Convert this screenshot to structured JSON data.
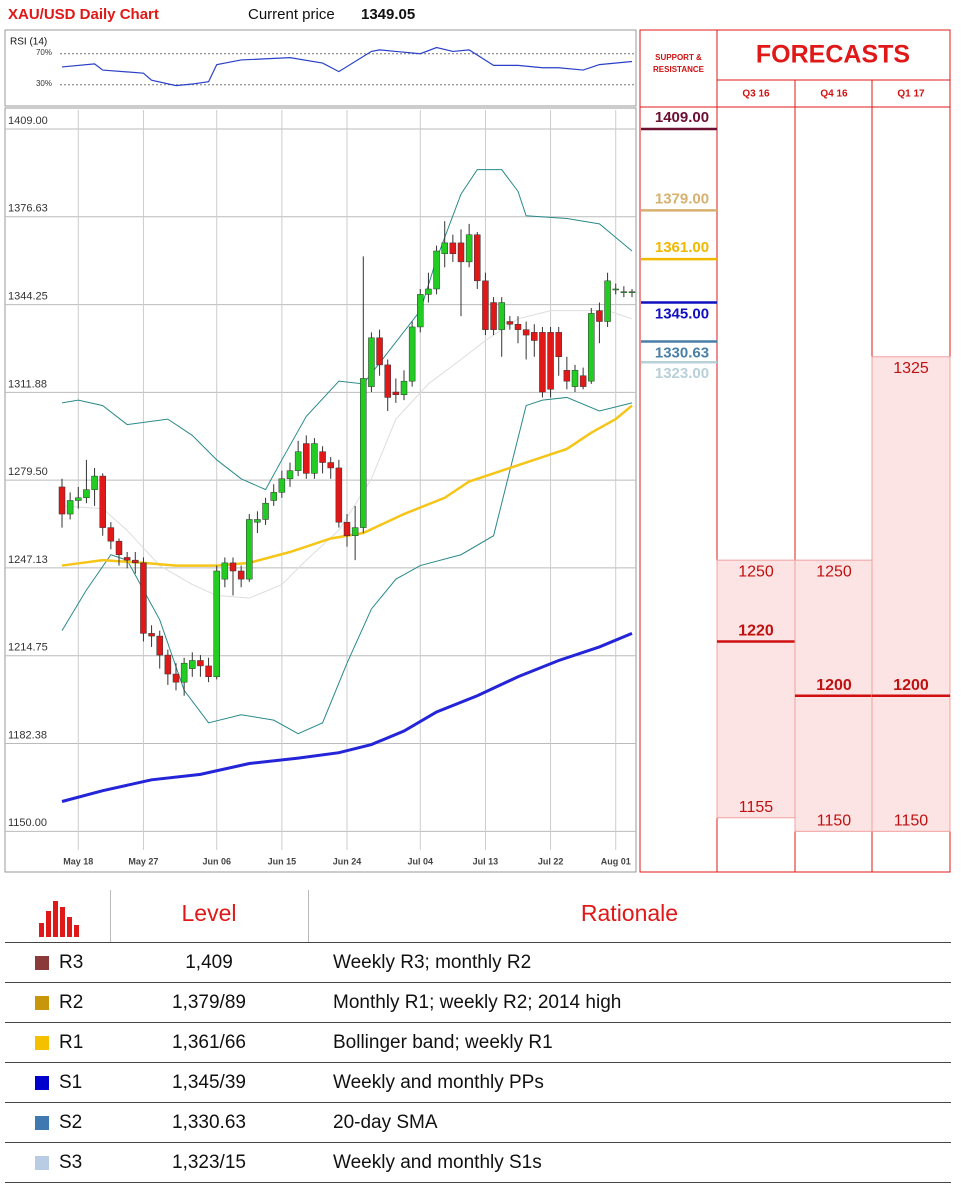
{
  "header": {
    "title": "XAU/USD Daily Chart",
    "price_label": "Current price",
    "price": "1349.05"
  },
  "chart_data": [
    {
      "type": "candlestick",
      "categories": [
        null,
        null,
        "May 18",
        null,
        null,
        null,
        null,
        null,
        null,
        null,
        "May 27",
        null,
        null,
        null,
        null,
        null,
        null,
        null,
        null,
        "Jun 06",
        null,
        null,
        null,
        null,
        null,
        null,
        null,
        "Jun 15",
        null,
        null,
        null,
        null,
        null,
        null,
        null,
        "Jun 24",
        null,
        null,
        null,
        null,
        null,
        null,
        null,
        null,
        "Jul 04",
        null,
        null,
        null,
        null,
        null,
        null,
        null,
        "Jul 13",
        null,
        null,
        null,
        null,
        null,
        null,
        null,
        "Jul 22",
        null,
        null,
        null,
        null,
        null,
        null,
        null,
        "Aug 01",
        null,
        null
      ],
      "open": [
        1277,
        1267,
        1272,
        1273,
        1276,
        1281,
        1262,
        1257,
        1251,
        1250,
        1249,
        1223,
        1222,
        1215,
        1208,
        1205,
        1210,
        1213,
        1211,
        1207,
        1243,
        1249,
        1246,
        1243,
        1264,
        1265,
        1272,
        1275,
        1280,
        1283,
        1293,
        1282,
        1290,
        1286,
        1284,
        1264,
        1259,
        1262,
        1314,
        1332,
        1322,
        1312,
        1311,
        1316,
        1336,
        1348,
        1350,
        1363,
        1367,
        1367,
        1360,
        1370,
        1353,
        1345,
        1335,
        1338,
        1337,
        1335,
        1334,
        1334,
        1334,
        1334,
        1320,
        1314,
        1318,
        1316,
        1342,
        1338,
        1350,
        1349,
        1349
      ],
      "close": [
        1267,
        1272,
        1273,
        1276,
        1281,
        1262,
        1257,
        1252,
        1250,
        1249,
        1223,
        1222,
        1215,
        1208,
        1205,
        1212,
        1213,
        1211,
        1207,
        1246,
        1249,
        1246,
        1243,
        1265,
        1265,
        1271,
        1275,
        1280,
        1283,
        1290,
        1282,
        1293,
        1286,
        1284,
        1264,
        1259,
        1262,
        1317,
        1332,
        1322,
        1310,
        1311,
        1316,
        1336,
        1348,
        1350,
        1364,
        1367,
        1363,
        1360,
        1370,
        1353,
        1335,
        1335,
        1345,
        1337,
        1335,
        1333,
        1331,
        1312,
        1313,
        1325,
        1316,
        1320,
        1314,
        1341,
        1338,
        1353,
        1350,
        1349,
        1349
      ],
      "high": [
        1280,
        1275,
        1277,
        1287,
        1284,
        1282,
        1264,
        1258,
        1253,
        1253,
        1251,
        1226,
        1224,
        1217,
        1212,
        1214,
        1216,
        1215,
        1214,
        1248,
        1251,
        1251,
        1248,
        1267,
        1268,
        1273,
        1278,
        1283,
        1286,
        1294,
        1296,
        1295,
        1292,
        1288,
        1287,
        1267,
        1270,
        1362,
        1334,
        1335,
        1324,
        1317,
        1320,
        1338,
        1350,
        1356,
        1366,
        1375,
        1370,
        1372,
        1374,
        1371,
        1356,
        1347,
        1347,
        1340,
        1340,
        1338,
        1337,
        1336,
        1336,
        1336,
        1325,
        1322,
        1321,
        1343,
        1345,
        1356,
        1352,
        1351,
        1350
      ],
      "low": [
        1262,
        1265,
        1269,
        1271,
        1270,
        1259,
        1254,
        1248,
        1247,
        1245,
        1220,
        1218,
        1210,
        1204,
        1202,
        1200,
        1207,
        1207,
        1205,
        1206,
        1240,
        1237,
        1240,
        1242,
        1260,
        1263,
        1270,
        1273,
        1277,
        1281,
        1280,
        1280,
        1282,
        1280,
        1262,
        1255,
        1250,
        1260,
        1312,
        1318,
        1305,
        1308,
        1309,
        1314,
        1334,
        1345,
        1348,
        1358,
        1360,
        1340,
        1358,
        1350,
        1333,
        1333,
        1325,
        1335,
        1330,
        1324,
        1325,
        1310,
        1310,
        1318,
        1313,
        1312,
        1313,
        1315,
        1330,
        1336,
        1348,
        1347,
        1347
      ],
      "up_color": "#22cc22",
      "down_color": "#e01818",
      "lines": [
        {
          "color": "#2a8a8a",
          "x": [
            0,
            2,
            5,
            8,
            13,
            16,
            19,
            22,
            25,
            27,
            30,
            34,
            37,
            44,
            46,
            49,
            51,
            54,
            56,
            57,
            62,
            66,
            70
          ],
          "values": [
            1308,
            1309,
            1307,
            1300,
            1302,
            1296,
            1287,
            1280,
            1276,
            1287,
            1303,
            1316,
            1315,
            1342,
            1361,
            1385,
            1394,
            1394,
            1386,
            1377,
            1376,
            1374,
            1364
          ]
        },
        {
          "color": "#2a8a8a",
          "x": [
            0,
            3,
            6,
            8,
            12,
            15,
            18,
            22,
            26,
            29,
            32,
            35,
            38,
            41,
            44,
            49,
            53,
            55,
            57,
            59,
            62,
            66,
            70
          ],
          "values": [
            1224,
            1239,
            1252,
            1250,
            1228,
            1202,
            1190,
            1193,
            1191,
            1186,
            1190,
            1212,
            1232,
            1243,
            1248,
            1252,
            1259,
            1283,
            1307,
            1309,
            1310,
            1305,
            1308
          ]
        },
        {
          "color": "#dddddd",
          "x": [
            0,
            5,
            8,
            12,
            16,
            19,
            23,
            27,
            30,
            34,
            38,
            41,
            45,
            49,
            52,
            56,
            60,
            63,
            67,
            70
          ],
          "values": [
            1270,
            1269,
            1261,
            1248,
            1241,
            1237,
            1236,
            1241,
            1250,
            1261,
            1280,
            1302,
            1315,
            1324,
            1331,
            1339,
            1342,
            1342,
            1342,
            1339
          ]
        },
        {
          "color": "#f5c518",
          "x": [
            0,
            5,
            10,
            14,
            19,
            23,
            28,
            33,
            37,
            42,
            47,
            50,
            54,
            58,
            62,
            65,
            68,
            70
          ],
          "values": [
            1248,
            1250,
            1249,
            1248,
            1248,
            1249,
            1253,
            1258,
            1260,
            1267,
            1273,
            1279,
            1283,
            1287,
            1291,
            1297,
            1302,
            1307
          ]
        },
        {
          "color": "#2424d8",
          "x": [
            0,
            5,
            11,
            17,
            23,
            29,
            34,
            38,
            42,
            46,
            51,
            56,
            61,
            66,
            70
          ],
          "values": [
            1161,
            1165,
            1169,
            1171,
            1175,
            1177,
            1179,
            1182,
            1187,
            1194,
            1200,
            1207,
            1213,
            1218,
            1223
          ]
        }
      ],
      "ylim": [
        1135,
        1416
      ],
      "yticks": [
        {
          "value": 1409,
          "label": "1409.00"
        },
        {
          "value": 1376.63,
          "label": "1376.63"
        },
        {
          "value": 1344.25,
          "label": "1344.25"
        },
        {
          "value": 1311.88,
          "label": "1311.88"
        },
        {
          "value": 1279.5,
          "label": "1279.50"
        },
        {
          "value": 1247.13,
          "label": "1247.13"
        },
        {
          "value": 1214.75,
          "label": "1214.75"
        },
        {
          "value": 1182.38,
          "label": "1182.38"
        },
        {
          "value": 1150,
          "label": "1150.00"
        }
      ],
      "grid": true
    },
    {
      "type": "line",
      "title": "RSI (14)",
      "color": "#2a40c8",
      "x": [
        0,
        4,
        5,
        10,
        11,
        14,
        16,
        18,
        19,
        22,
        28,
        32,
        34,
        38,
        39,
        41,
        44,
        46,
        48,
        50,
        53,
        56,
        59,
        61,
        64,
        66,
        70
      ],
      "values": [
        53,
        57,
        49,
        45,
        36,
        29,
        31,
        34,
        56,
        62,
        65,
        58,
        47,
        73,
        75,
        73,
        70,
        78,
        73,
        75,
        55,
        55,
        52,
        52,
        49,
        56,
        60
      ],
      "xlim": [
        0,
        70
      ],
      "ylim": [
        4,
        98
      ],
      "yticks": [
        {
          "value": 70,
          "label": "70%"
        },
        {
          "value": 30,
          "label": "30%"
        }
      ]
    }
  ],
  "support_resistance": {
    "title": "SUPPORT & RESISTANCE",
    "levels": [
      {
        "value": 1409,
        "label": "1409.00",
        "color": "#6b1030"
      },
      {
        "value": 1379,
        "label": "1379.00",
        "color": "#d8b070"
      },
      {
        "value": 1361,
        "label": "1361.00",
        "color": "#f2b800"
      },
      {
        "value": 1345,
        "label": "1345.00",
        "color": "#1010c0"
      },
      {
        "value": 1330.63,
        "label": "1330.63",
        "color": "#4a7fa8"
      },
      {
        "value": 1323,
        "label": "1323.00",
        "color": "#b8d0d8"
      }
    ]
  },
  "forecasts": {
    "title": "FORECASTS",
    "columns": [
      {
        "label": "Q3 16",
        "high": 1250,
        "mid": 1220,
        "low": 1155
      },
      {
        "label": "Q4 16",
        "high": 1250,
        "mid": 1200,
        "low": 1150
      },
      {
        "label": "Q1 17",
        "high": 1325,
        "mid": 1200,
        "low": 1150
      }
    ]
  },
  "table": {
    "headers": [
      "Level",
      "Rationale"
    ],
    "rows": [
      {
        "color": "#8b3a3a",
        "code": "R3",
        "level": "1,409",
        "rationale": "Weekly R3; monthly R2"
      },
      {
        "color": "#c8960a",
        "code": "R2",
        "level": "1,379/89",
        "rationale": "Monthly R1; weekly R2; 2014 high"
      },
      {
        "color": "#f5c000",
        "code": "R1",
        "level": "1,361/66",
        "rationale": "Bollinger band; weekly R1"
      },
      {
        "color": "#0000cc",
        "code": "S1",
        "level": "1,345/39",
        "rationale": "Weekly and monthly PPs"
      },
      {
        "color": "#3f79b0",
        "code": "S2",
        "level": "1,330.63",
        "rationale": "20-day SMA"
      },
      {
        "color": "#b8cce4",
        "code": "S3",
        "level": "1,323/15",
        "rationale": "Weekly and monthly S1s"
      }
    ]
  }
}
